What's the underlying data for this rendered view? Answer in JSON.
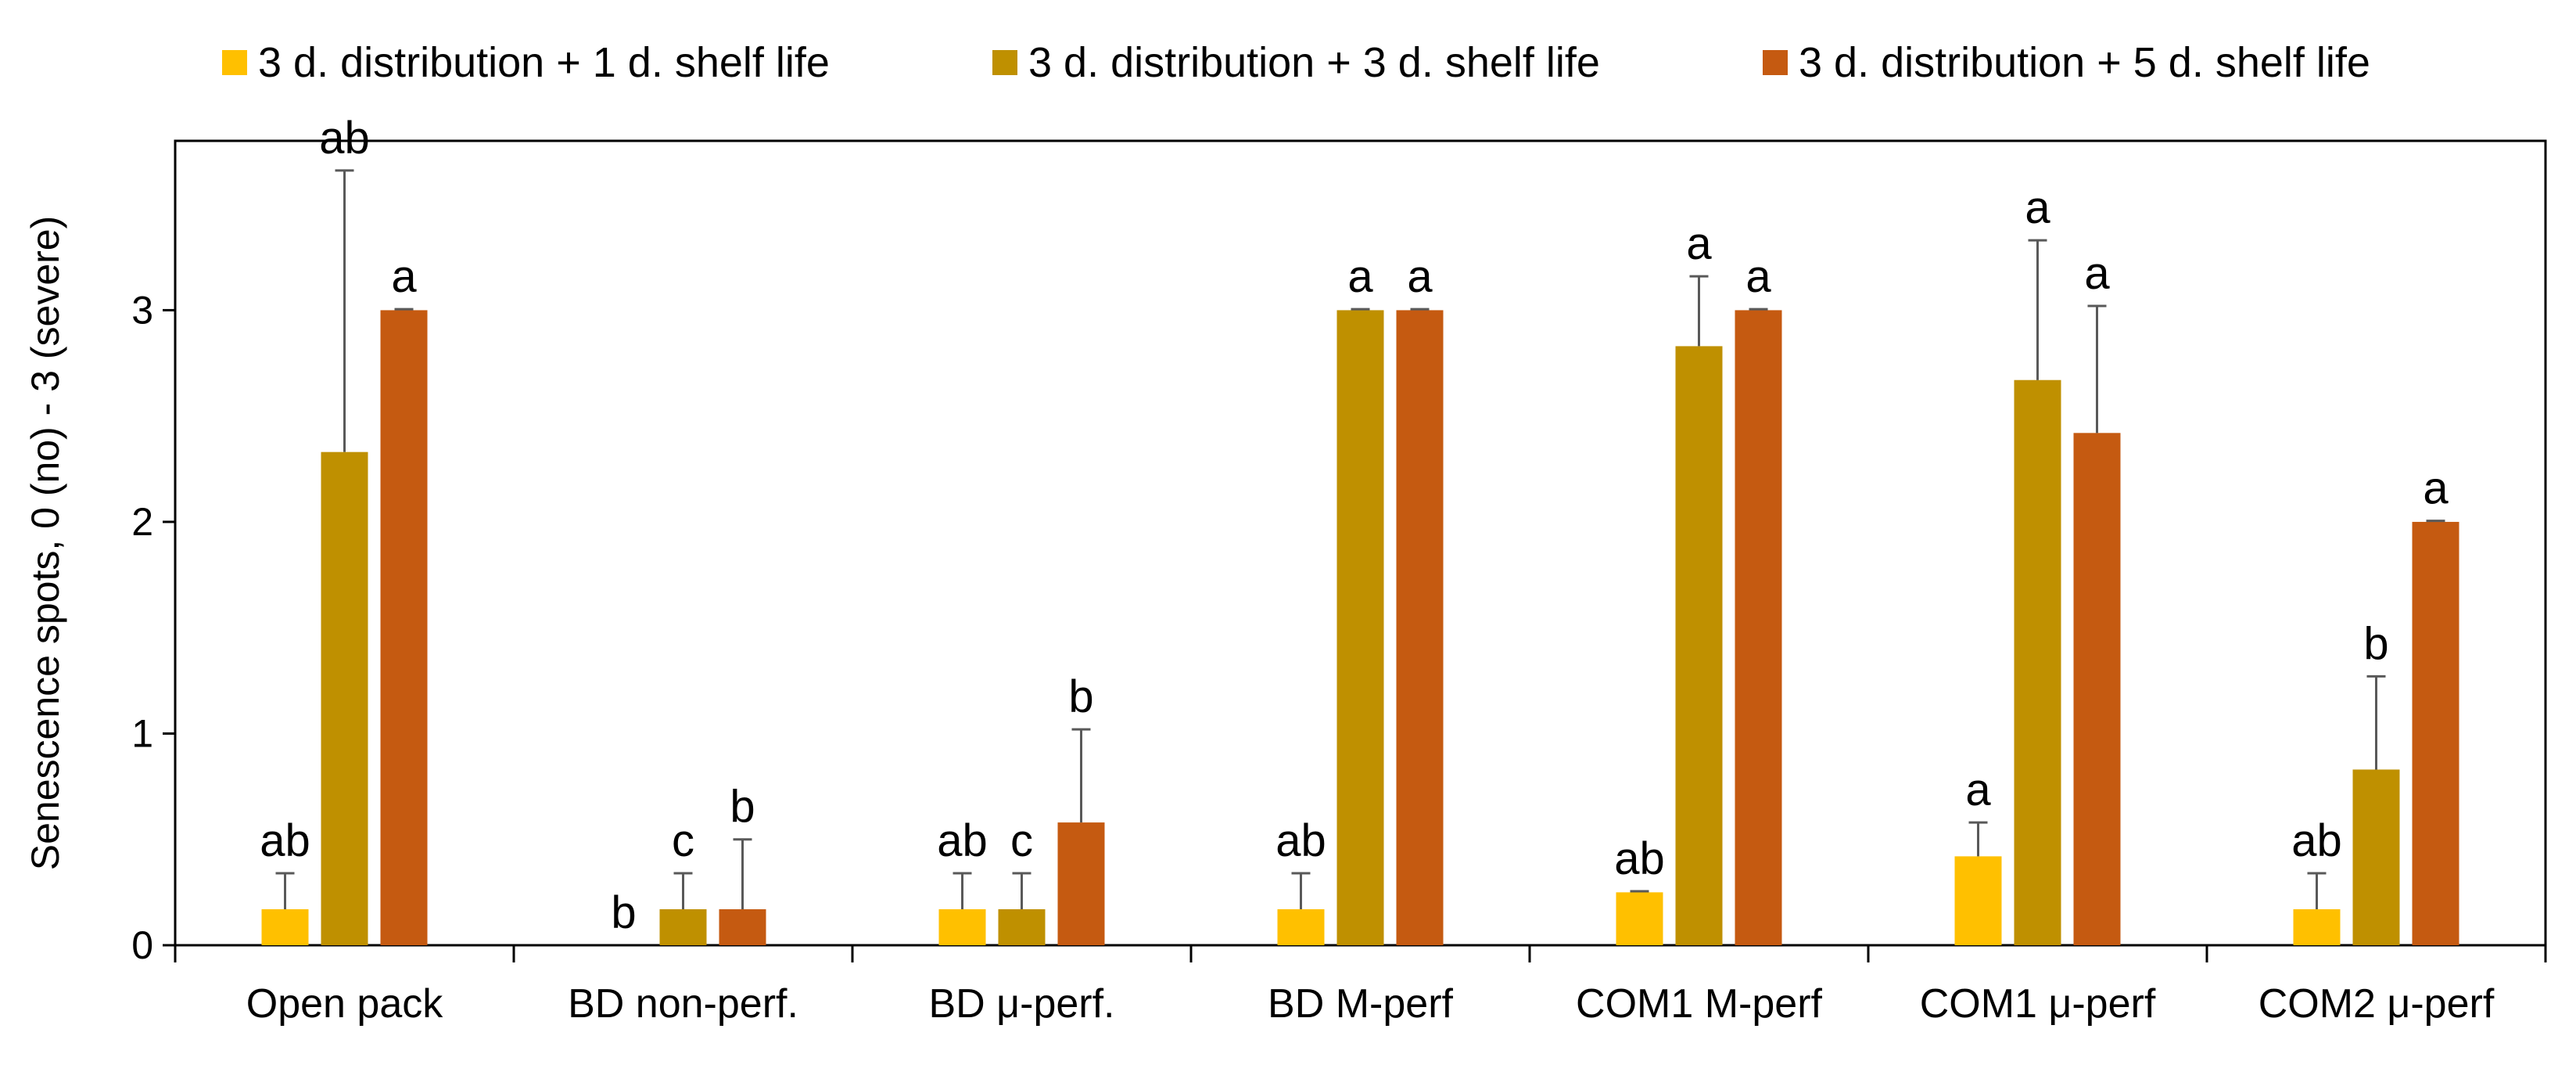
{
  "chart_data": {
    "type": "bar",
    "title": "",
    "xlabel": "",
    "ylabel": "Senescence spots, 0 (no) - 3 (severe)",
    "ylim": [
      0,
      3.8
    ],
    "yticks": [
      0,
      1,
      2,
      3
    ],
    "grid": false,
    "legend_position": "top",
    "categories": [
      "Open pack",
      "BD non-perf.",
      "BD μ-perf.",
      "BD M-perf",
      "COM1 M-perf",
      "COM1 μ-perf",
      "COM2 μ-perf"
    ],
    "series": [
      {
        "name": "3 d. distribution + 1 d. shelf life",
        "color": "#FFC000",
        "values": [
          0.17,
          0,
          0.17,
          0.17,
          0.25,
          0.42,
          0.17
        ],
        "errors": [
          0.17,
          0,
          0.17,
          0.17,
          0.005,
          0.16,
          0.17
        ],
        "letters": [
          "ab",
          "b",
          "ab",
          "ab",
          "ab",
          "a",
          "ab"
        ]
      },
      {
        "name": "3 d. distribution + 3 d. shelf life",
        "color": "#BF9000",
        "values": [
          2.33,
          0.17,
          0.17,
          3.0,
          2.83,
          2.67,
          0.83
        ],
        "errors": [
          1.33,
          0.17,
          0.17,
          0.005,
          0.33,
          0.66,
          0.44
        ],
        "letters": [
          "ab",
          "c",
          "c",
          "a",
          "a",
          "a",
          "b"
        ]
      },
      {
        "name": "3 d. distribution + 5 d. shelf life",
        "color": "#C55A11",
        "values": [
          3.0,
          0.17,
          0.58,
          3.0,
          3.0,
          2.42,
          2.0
        ],
        "errors": [
          0.005,
          0.33,
          0.44,
          0.005,
          0.005,
          0.6,
          0.005
        ],
        "letters": [
          "a",
          "b",
          "b",
          "a",
          "a",
          "a",
          "a"
        ]
      }
    ]
  }
}
